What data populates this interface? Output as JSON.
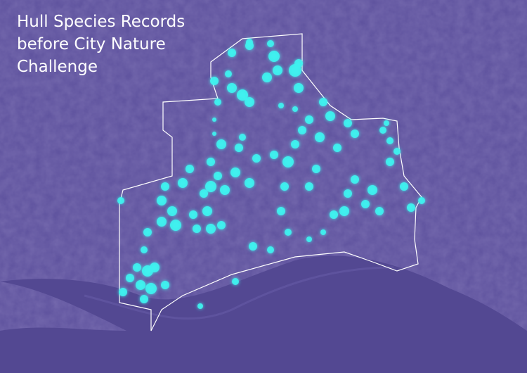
{
  "map": {
    "title": {
      "lines": [
        "Hull Species Records",
        "before City Nature",
        "Challenge"
      ]
    }
  }
}
